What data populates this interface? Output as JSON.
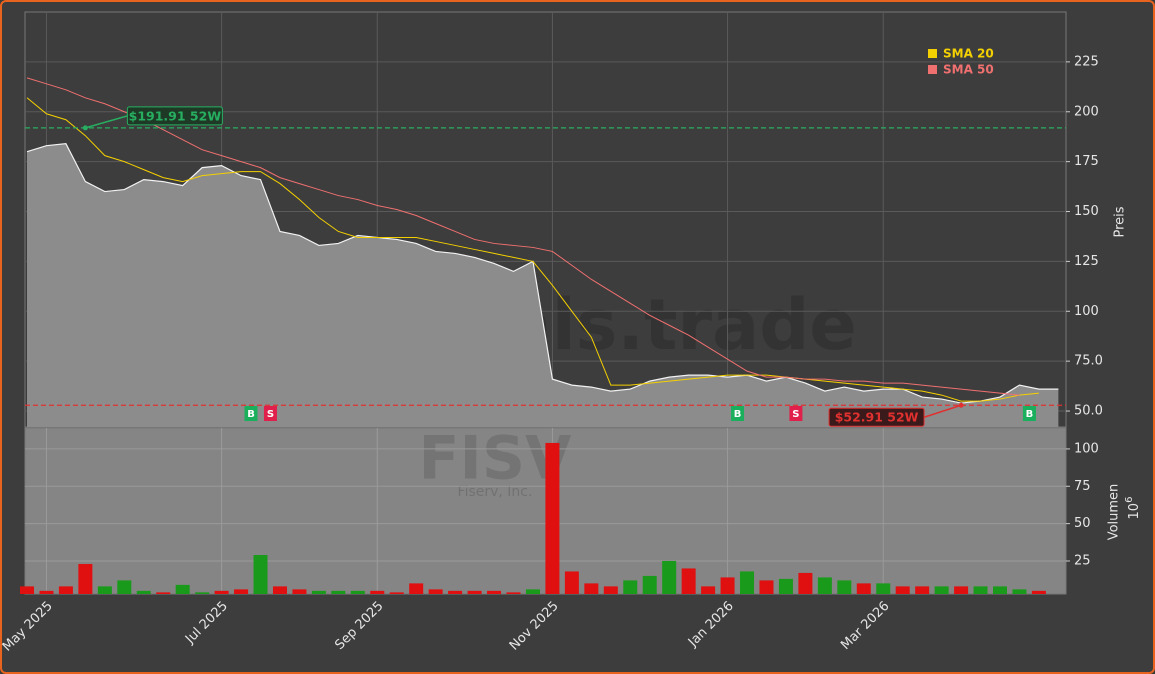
{
  "chart_data": [
    {
      "type": "line",
      "ylabel": "Preis",
      "color": "#f2f2f2",
      "area_color": "#8c8c8c",
      "values": [
        180,
        183,
        184,
        165,
        160,
        161,
        166,
        165,
        163,
        172,
        173,
        168,
        166,
        140,
        138,
        133,
        134,
        138,
        137,
        136,
        134,
        130,
        129,
        127,
        124,
        120,
        125,
        66,
        63,
        62,
        60,
        61,
        65,
        67,
        68,
        68,
        67,
        68,
        65,
        67,
        64,
        60,
        62,
        60,
        61,
        61,
        57,
        56,
        54,
        55,
        57,
        63,
        61,
        61
      ],
      "series": [
        {
          "name": "SMA 20",
          "color": "#f5d000",
          "values": [
            207,
            199,
            196,
            188,
            178,
            175,
            171,
            167,
            165,
            168,
            169,
            170,
            170,
            164,
            156,
            147,
            140,
            137,
            137,
            137,
            137,
            135,
            133,
            131,
            129,
            127,
            125,
            113,
            100,
            87,
            63,
            63,
            64,
            65,
            66,
            67,
            68,
            68,
            68,
            67,
            66,
            65,
            64,
            63,
            62,
            61,
            60,
            58,
            55,
            55,
            56,
            58,
            59,
            null
          ]
        },
        {
          "name": "SMA 50",
          "color": "#f07070",
          "values": [
            217,
            214,
            211,
            207,
            204,
            200,
            196,
            191,
            186,
            181,
            178,
            175,
            172,
            167,
            164,
            161,
            158,
            156,
            153,
            151,
            148,
            144,
            140,
            136,
            134,
            133,
            132,
            130,
            123,
            116,
            110,
            104,
            98,
            93,
            88,
            82,
            76,
            70,
            67,
            67,
            66,
            66,
            65,
            65,
            64,
            64,
            63,
            62,
            61,
            60,
            59,
            58,
            null,
            null
          ]
        }
      ],
      "ylim": [
        42,
        250
      ],
      "yticks": [
        {
          "value": 50,
          "label": "50.0"
        },
        {
          "value": 75,
          "label": "75.0"
        },
        100,
        125,
        150,
        175,
        200,
        225
      ],
      "grid": true,
      "legend": "upper right",
      "annotations": [
        {
          "text": "$191.91 52W",
          "value": 191.91,
          "x": 3,
          "color": "#27ae60"
        },
        {
          "text": "$52.91 52W",
          "value": 52.91,
          "x": 48,
          "color": "#e03030"
        }
      ],
      "signals": [
        {
          "label": "B",
          "x": 12,
          "color": "#1aaf5d"
        },
        {
          "label": "S",
          "x": 13,
          "color": "#e0204a"
        },
        {
          "label": "B",
          "x": 37,
          "color": "#1aaf5d"
        },
        {
          "label": "S",
          "x": 40,
          "color": "#e0204a"
        },
        {
          "label": "B",
          "x": 52,
          "color": "#1aaf5d"
        }
      ],
      "watermark": "forexsignals.trade"
    },
    {
      "type": "bar",
      "ylabel": "Volumen",
      "ylabel_unit_base": "10",
      "ylabel_unit_exp": "6",
      "symbol": "FISV",
      "company": "Fiserv, Inc.",
      "categories": [
        null,
        "May 2025",
        null,
        null,
        null,
        null,
        null,
        null,
        null,
        null,
        "Jul 2025",
        null,
        null,
        null,
        null,
        null,
        null,
        null,
        "Sep 2025",
        null,
        null,
        null,
        null,
        null,
        null,
        null,
        null,
        "Nov 2025",
        null,
        null,
        null,
        null,
        null,
        null,
        null,
        null,
        "Jan 2026",
        null,
        null,
        null,
        null,
        null,
        null,
        null,
        "Mar 2026",
        null,
        null,
        null,
        null,
        null,
        null,
        null,
        null,
        null
      ],
      "values": [
        8,
        5,
        8,
        23,
        8,
        12,
        5,
        4,
        9,
        4,
        5,
        6,
        29,
        8,
        6,
        5,
        5,
        5,
        5,
        4,
        10,
        6,
        5,
        5,
        5,
        4,
        6,
        104,
        18,
        10,
        8,
        12,
        15,
        25,
        20,
        8,
        14,
        18,
        12,
        13,
        17,
        14,
        12,
        10,
        10,
        8,
        8,
        8,
        8,
        8,
        8,
        6,
        5,
        null
      ],
      "bar_colors": [
        "#e01010",
        "#e01010",
        "#e01010",
        "#e01010",
        "#1a9a1a",
        "#1a9a1a",
        "#1a9a1a",
        "#e01010",
        "#1a9a1a",
        "#1a9a1a",
        "#e01010",
        "#e01010",
        "#1a9a1a",
        "#e01010",
        "#e01010",
        "#1a9a1a",
        "#1a9a1a",
        "#1a9a1a",
        "#e01010",
        "#e01010",
        "#e01010",
        "#e01010",
        "#e01010",
        "#e01010",
        "#e01010",
        "#e01010",
        "#1a9a1a",
        "#e01010",
        "#e01010",
        "#e01010",
        "#e01010",
        "#1a9a1a",
        "#1a9a1a",
        "#1a9a1a",
        "#e01010",
        "#e01010",
        "#e01010",
        "#1a9a1a",
        "#e01010",
        "#1a9a1a",
        "#e01010",
        "#1a9a1a",
        "#1a9a1a",
        "#e01010",
        "#1a9a1a",
        "#e01010",
        "#e01010",
        "#1a9a1a",
        "#e01010",
        "#1a9a1a",
        "#1a9a1a",
        "#1a9a1a",
        "#e01010",
        null
      ],
      "ylim": [
        2.9,
        114
      ],
      "yticks": [
        25,
        50,
        75,
        100
      ],
      "panel_color": "#858585"
    }
  ]
}
